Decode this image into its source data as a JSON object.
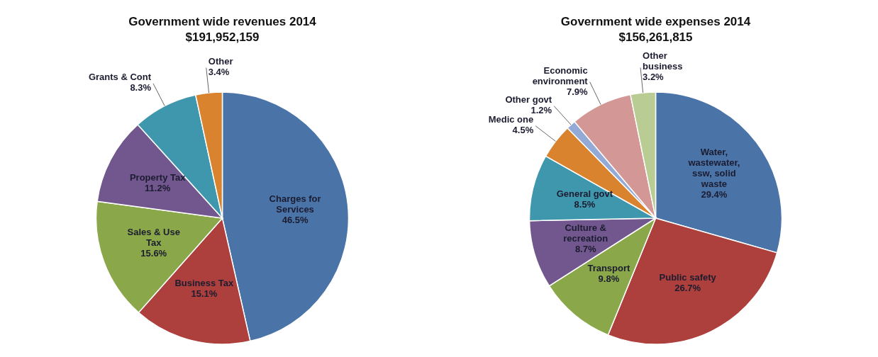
{
  "chart_data": [
    {
      "type": "pie",
      "title": "Government wide revenues 2014",
      "subtitle": "$191,952,159",
      "categories": [
        "Charges for\nServices",
        "Business Tax",
        "Sales & Use\nTax",
        "Property Tax",
        "Grants & Cont",
        "Other"
      ],
      "values": [
        46.5,
        15.1,
        15.6,
        11.2,
        8.3,
        3.4
      ],
      "value_labels": [
        "46.5%",
        "15.1%",
        "15.6%",
        "11.2%",
        "8.3%",
        "3.4%"
      ],
      "colors": [
        "#4a73a8",
        "#ad3f3c",
        "#8aa84a",
        "#71578e",
        "#3f97ad",
        "#d9832f"
      ],
      "legend": false
    },
    {
      "type": "pie",
      "title": "Government wide expenses 2014",
      "subtitle": "$156,261,815",
      "categories": [
        "Water,\nwastewater,\nssw, solid\nwaste",
        "Public safety",
        "Transport",
        "Culture &\nrecreation",
        "General govt",
        "Medic one",
        "Other govt",
        "Economic\nenvironment",
        "Other\nbusiness"
      ],
      "values": [
        29.4,
        26.7,
        9.8,
        8.7,
        8.5,
        4.5,
        1.2,
        7.9,
        3.2
      ],
      "value_labels": [
        "29.4%",
        "26.7%",
        "9.8%",
        "8.7%",
        "8.5%",
        "4.5%",
        "1.2%",
        "7.9%",
        "3.2%"
      ],
      "colors": [
        "#4a73a8",
        "#ad3f3c",
        "#8aa84a",
        "#71578e",
        "#3f97ad",
        "#d9832f",
        "#93aad6",
        "#d39795",
        "#b8cc94"
      ],
      "legend": false
    }
  ]
}
